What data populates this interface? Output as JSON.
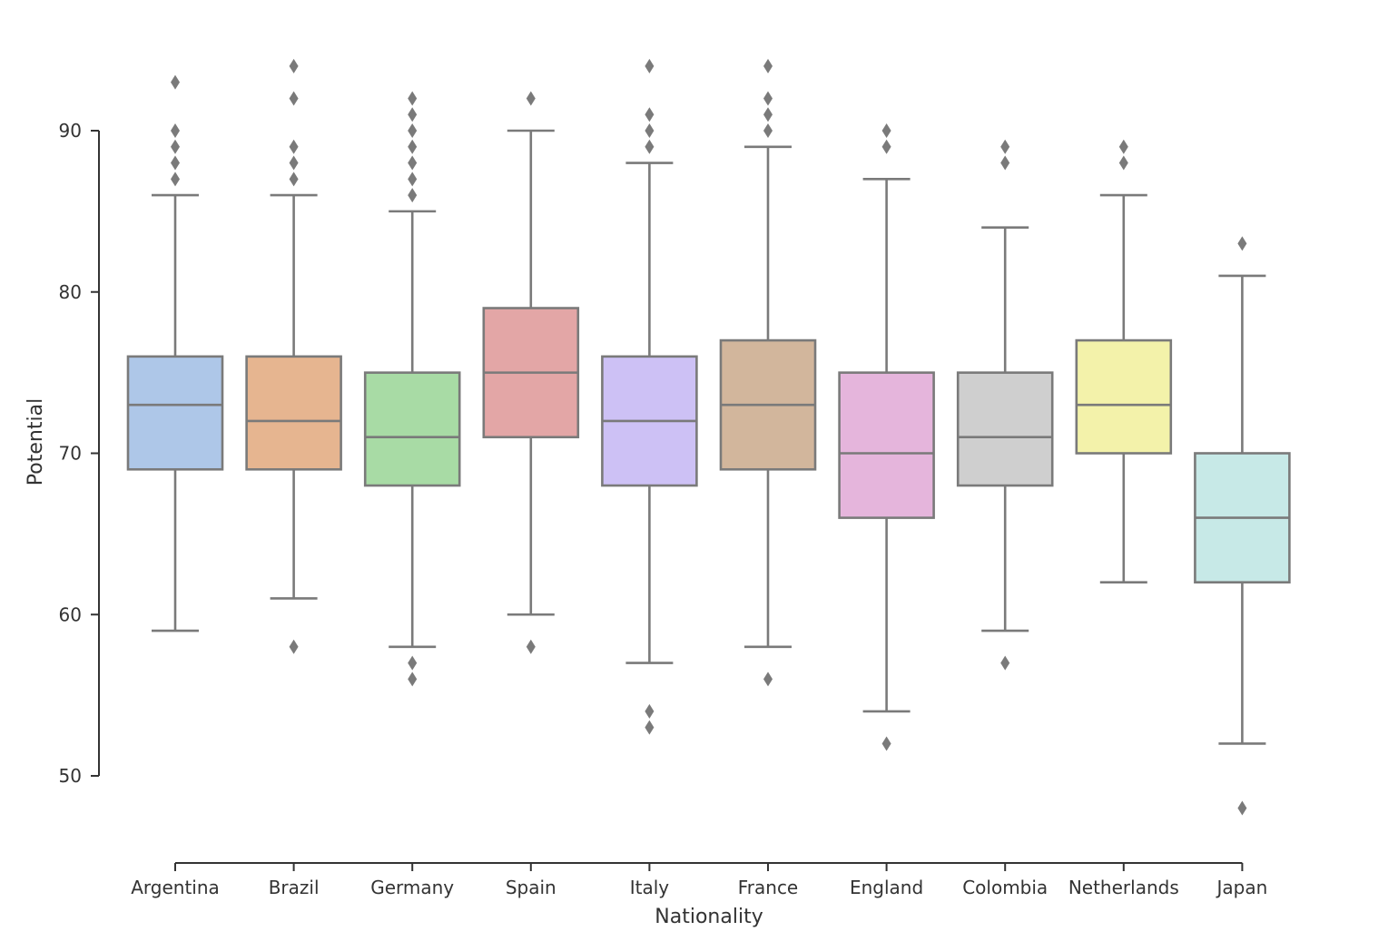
{
  "chart_data": {
    "type": "box",
    "title": "",
    "xlabel": "Nationality",
    "ylabel": "Potential",
    "ylim": [
      45,
      96
    ],
    "yticks": [
      50,
      60,
      70,
      80,
      90
    ],
    "ytick_labels": [
      "50",
      "60",
      "70",
      "80",
      "90"
    ],
    "categories": [
      "Argentina",
      "Brazil",
      "Germany",
      "Spain",
      "Italy",
      "France",
      "England",
      "Colombia",
      "Netherlands",
      "Japan"
    ],
    "box_edge_color": "#7a7a7a",
    "colors": [
      "#aec7e8",
      "#e6b590",
      "#a8dba5",
      "#e3a6a6",
      "#cdc1f5",
      "#d2b69c",
      "#e5b5dc",
      "#cfcfcf",
      "#f3f2aa",
      "#c7e9e7"
    ],
    "boxes": [
      {
        "category": "Argentina",
        "whislo": 59,
        "q1": 69,
        "median": 73,
        "q3": 76,
        "whishi": 86,
        "fliers": [
          87,
          88,
          89,
          90,
          93
        ]
      },
      {
        "category": "Brazil",
        "whislo": 61,
        "q1": 69,
        "median": 72,
        "q3": 76,
        "whishi": 86,
        "fliers": [
          58,
          87,
          88,
          89,
          92,
          94
        ]
      },
      {
        "category": "Germany",
        "whislo": 58,
        "q1": 68,
        "median": 71,
        "q3": 75,
        "whishi": 85,
        "fliers": [
          56,
          57,
          86,
          87,
          88,
          89,
          90,
          91,
          92
        ]
      },
      {
        "category": "Spain",
        "whislo": 60,
        "q1": 71,
        "median": 75,
        "q3": 79,
        "whishi": 90,
        "fliers": [
          58,
          92
        ]
      },
      {
        "category": "Italy",
        "whislo": 57,
        "q1": 68,
        "median": 72,
        "q3": 76,
        "whishi": 88,
        "fliers": [
          53,
          54,
          89,
          90,
          91,
          94
        ]
      },
      {
        "category": "France",
        "whislo": 58,
        "q1": 69,
        "median": 73,
        "q3": 77,
        "whishi": 89,
        "fliers": [
          56,
          90,
          91,
          92,
          94
        ]
      },
      {
        "category": "England",
        "whislo": 54,
        "q1": 66,
        "median": 70,
        "q3": 75,
        "whishi": 87,
        "fliers": [
          52,
          89,
          90
        ]
      },
      {
        "category": "Colombia",
        "whislo": 59,
        "q1": 68,
        "median": 71,
        "q3": 75,
        "whishi": 84,
        "fliers": [
          57,
          88,
          89
        ]
      },
      {
        "category": "Netherlands",
        "whislo": 62,
        "q1": 70,
        "median": 73,
        "q3": 77,
        "whishi": 86,
        "fliers": [
          88,
          89
        ]
      },
      {
        "category": "Japan",
        "whislo": 52,
        "q1": 62,
        "median": 66,
        "q3": 70,
        "whishi": 81,
        "fliers": [
          48,
          83
        ]
      }
    ]
  }
}
